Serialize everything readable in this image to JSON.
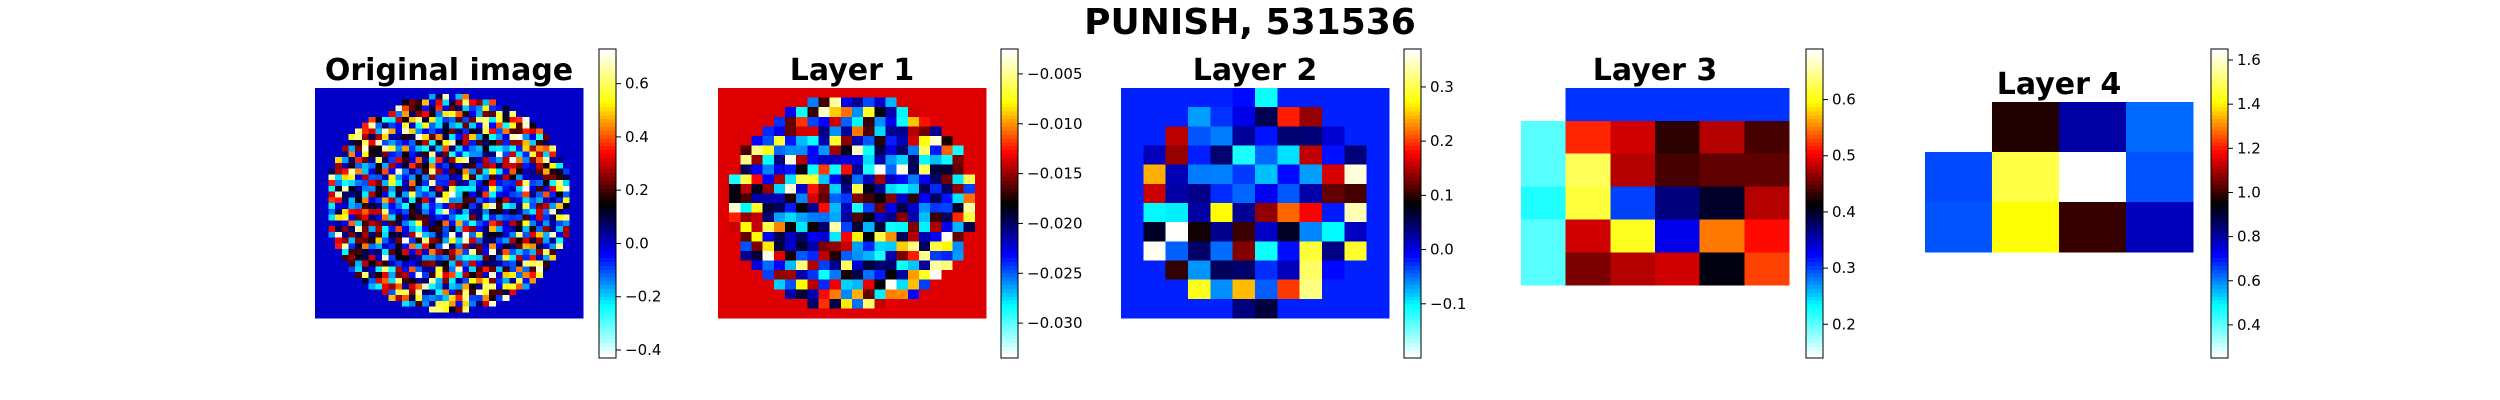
{
  "figure": {
    "title": "PUNISH, 531536",
    "colormap": [
      "#ffffff",
      "#00ffff",
      "#0000ff",
      "#000000",
      "#ff0000",
      "#ffff00",
      "#ffffff"
    ]
  },
  "chart_data": [
    {
      "type": "heatmap",
      "title": "Original image",
      "shape": "disk",
      "rows": 40,
      "cols": 40,
      "background": 0.0,
      "vmin": -0.43,
      "vmax": 0.73,
      "colorbar_ticks": [
        -0.4,
        -0.2,
        0.0,
        0.2,
        0.4,
        0.6
      ],
      "colorbar_labels": [
        "−0.4",
        "−0.2",
        "0.0",
        "0.2",
        "0.4",
        "0.6"
      ],
      "value_range_inside": [
        -0.43,
        0.73
      ],
      "seed": 11
    },
    {
      "type": "heatmap",
      "title": "Layer 1",
      "shape": "disk",
      "rows": 24,
      "cols": 24,
      "background": -0.0135,
      "vmin": -0.0335,
      "vmax": -0.0025,
      "colorbar_ticks": [
        -0.03,
        -0.025,
        -0.02,
        -0.015,
        -0.01,
        -0.005
      ],
      "colorbar_labels": [
        "−0.030",
        "−0.025",
        "−0.020",
        "−0.015",
        "−0.010",
        "−0.005"
      ],
      "value_range_inside": [
        -0.0335,
        -0.0025
      ],
      "seed": 23
    },
    {
      "type": "heatmap",
      "title": "Layer 2",
      "shape": "disk",
      "rows": 12,
      "cols": 12,
      "background": -0.022,
      "vmin": -0.2,
      "vmax": 0.37,
      "colorbar_ticks": [
        -0.1,
        0.0,
        0.1,
        0.2,
        0.3
      ],
      "colorbar_labels": [
        "−0.1",
        "0.0",
        "0.1",
        "0.2",
        "0.3"
      ],
      "value_range_inside": [
        -0.2,
        0.37
      ],
      "seed": 37
    },
    {
      "type": "heatmap",
      "title": "Layer 3",
      "rows": 7,
      "cols": 6,
      "vmin": 0.14,
      "vmax": 0.69,
      "colorbar_ticks": [
        0.2,
        0.3,
        0.4,
        0.5,
        0.6
      ],
      "colorbar_labels": [
        "0.2",
        "0.3",
        "0.4",
        "0.5",
        "0.6"
      ],
      "values": [
        [
          null,
          0.305,
          0.305,
          0.305,
          0.305,
          0.305
        ],
        [
          0.2,
          0.52,
          0.49,
          0.43,
          0.48,
          0.44
        ],
        [
          0.2,
          0.63,
          0.48,
          0.44,
          0.45,
          0.45
        ],
        [
          0.22,
          0.62,
          0.3,
          0.37,
          0.4,
          0.48
        ],
        [
          0.2,
          0.49,
          0.61,
          0.33,
          0.55,
          0.51
        ],
        [
          0.2,
          0.46,
          0.48,
          0.49,
          0.41,
          0.53
        ],
        [
          null,
          null,
          null,
          null,
          null,
          null
        ]
      ]
    },
    {
      "type": "heatmap",
      "title": "Layer 4",
      "rows": 4,
      "cols": 4,
      "vmin": 0.25,
      "vmax": 1.65,
      "colorbar_ticks": [
        0.4,
        0.6,
        0.8,
        1.0,
        1.2,
        1.4,
        1.6
      ],
      "colorbar_labels": [
        "0.4",
        "0.6",
        "0.8",
        "1.0",
        "1.2",
        "1.4",
        "1.6"
      ],
      "values": [
        [
          null,
          0.98,
          0.8,
          0.62
        ],
        [
          0.65,
          1.48,
          1.68,
          0.64
        ],
        [
          0.64,
          1.42,
          1.0,
          0.78
        ],
        [
          null,
          null,
          null,
          null
        ]
      ]
    }
  ]
}
